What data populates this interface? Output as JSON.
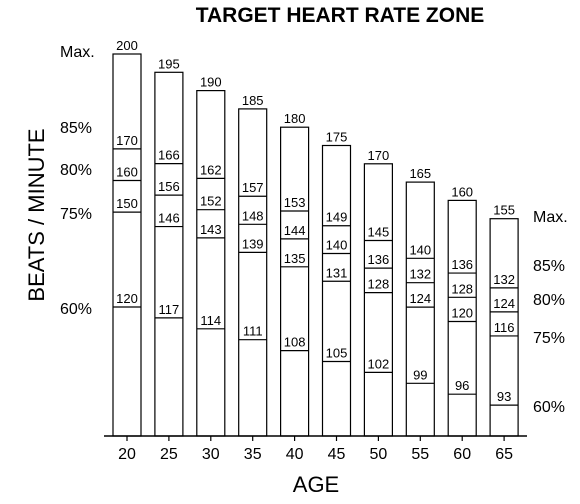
{
  "chart_data": {
    "type": "bar",
    "title": "TARGET HEART RATE ZONE",
    "xlabel": "AGE",
    "ylabel": "BEATS / MINUTE",
    "categories": [
      "20",
      "25",
      "30",
      "35",
      "40",
      "45",
      "50",
      "55",
      "60",
      "65"
    ],
    "zone_labels_left": [
      "Max.",
      "85%",
      "80%",
      "75%",
      "60%"
    ],
    "zone_labels_right": [
      "Max.",
      "85%",
      "80%",
      "75%",
      "60%"
    ],
    "series": [
      {
        "name": "Max.",
        "values": [
          200,
          195,
          190,
          185,
          180,
          175,
          170,
          165,
          160,
          155
        ]
      },
      {
        "name": "85%",
        "values": [
          170,
          166,
          162,
          157,
          153,
          149,
          145,
          140,
          136,
          132
        ]
      },
      {
        "name": "80%",
        "values": [
          160,
          156,
          152,
          148,
          144,
          140,
          136,
          132,
          128,
          124
        ]
      },
      {
        "name": "75%",
        "values": [
          150,
          146,
          143,
          139,
          135,
          131,
          128,
          124,
          120,
          116
        ]
      },
      {
        "name": "60%",
        "values": [
          120,
          117,
          114,
          111,
          108,
          105,
          102,
          99,
          96,
          93
        ]
      }
    ],
    "grid": false,
    "colors": {
      "stroke": "#000000",
      "fill": "#ffffff"
    }
  }
}
